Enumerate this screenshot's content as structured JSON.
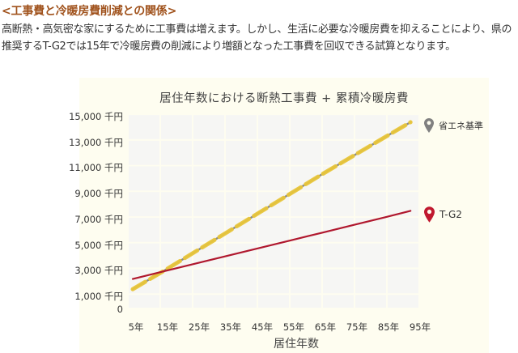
{
  "heading": "<工事費と冷暖房費削減との関係>",
  "paragraph": "高断熱・高気密な家にするために工事費は増えます。しかし、生活に必要な冷暖房費を抑えることにより、県の推奨するT-G2では15年で冷暖房費の削減により増額となった工事費を回収できる試算となります。",
  "chart": {
    "background": "#fefdf0"
  },
  "chart_data": {
    "type": "line",
    "title": "居住年数における断熱工事費 + 累積冷暖房費",
    "xlabel": "居住年数",
    "ylabel": "",
    "x": [
      5,
      15,
      25,
      35,
      45,
      55,
      65,
      75,
      85,
      95
    ],
    "x_tick_labels": [
      "5年",
      "15年",
      "25年",
      "35年",
      "45年",
      "55年",
      "65年",
      "75年",
      "85年",
      "95年"
    ],
    "y_tick_labels": [
      "15,000 千円",
      "13,000 千円",
      "11,000 千円",
      "9,000 千円",
      "7,000 千円",
      "5,000 千円",
      "3,000 千円",
      "1,000 千円",
      "0"
    ],
    "y_ticks": [
      15000,
      13000,
      11000,
      9000,
      7000,
      5000,
      3000,
      1000,
      0
    ],
    "ylim": [
      0,
      16000
    ],
    "grid": true,
    "legend_position": "right (labels at line ends)",
    "series": [
      {
        "name": "省エネ基準",
        "color": "#e8c53a",
        "underline_color": "#8a8a8a",
        "marker_color": "#808080",
        "x": [
          5,
          15,
          25,
          35,
          45,
          55,
          65,
          75,
          85,
          93
        ],
        "values": [
          1500,
          2950,
          4450,
          5950,
          7450,
          8950,
          10450,
          11900,
          13350,
          14500
        ]
      },
      {
        "name": "T-G2",
        "color": "#b0182e",
        "marker_color": "#c0192f",
        "x": [
          5,
          15,
          25,
          35,
          45,
          55,
          65,
          75,
          85,
          93
        ],
        "values": [
          2300,
          2900,
          3500,
          4100,
          4700,
          5300,
          5900,
          6500,
          7100,
          7600
        ]
      }
    ],
    "annotations": [
      "Lines cross near 15年 (~2,900 千円)"
    ]
  }
}
